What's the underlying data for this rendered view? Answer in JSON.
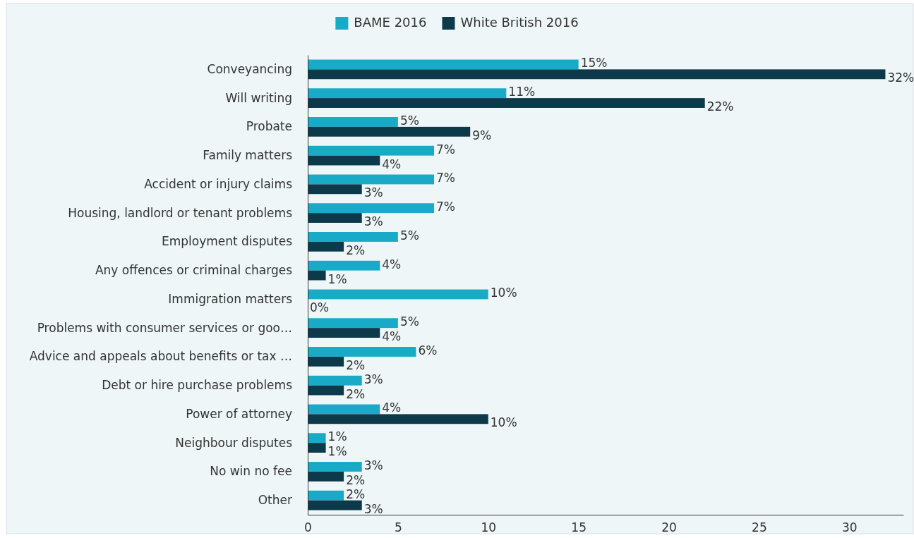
{
  "chart_data": {
    "type": "bar",
    "orientation": "horizontal",
    "legend": "top",
    "grid": false,
    "categories": [
      "Conveyancing",
      "Will writing",
      "Probate",
      "Family matters",
      "Accident or injury claims",
      "Housing, landlord or tenant problems",
      "Employment disputes",
      "Any offences or criminal charges",
      "Immigration matters",
      "Problems with consumer services or goo…",
      "Advice and appeals about benefits or tax …",
      "Debt or hire purchase problems",
      "Power of attorney",
      "Neighbour disputes",
      "No win no fee",
      "Other"
    ],
    "series": [
      {
        "name": "BAME 2016",
        "color": "#19aac8",
        "values": [
          15,
          11,
          5,
          7,
          7,
          7,
          5,
          4,
          10,
          5,
          6,
          3,
          4,
          1,
          3,
          2
        ],
        "value_labels": [
          "15%",
          "11%",
          "5%",
          "7%",
          "7%",
          "7%",
          "5%",
          "4%",
          "10%",
          "5%",
          "6%",
          "3%",
          "4%",
          "1%",
          "3%",
          "2%"
        ]
      },
      {
        "name": "White British 2016",
        "color": "#0d3a4a",
        "values": [
          32,
          22,
          9,
          4,
          3,
          3,
          2,
          1,
          0,
          4,
          2,
          2,
          10,
          1,
          2,
          3
        ],
        "value_labels": [
          "32%",
          "22%",
          "9%",
          "4%",
          "3%",
          "3%",
          "2%",
          "1%",
          "0%",
          "4%",
          "2%",
          "2%",
          "10%",
          "1%",
          "2%",
          "3%"
        ]
      }
    ],
    "xlim": [
      0,
      33
    ],
    "xticks": [
      0,
      5,
      10,
      15,
      20,
      25,
      30
    ]
  }
}
